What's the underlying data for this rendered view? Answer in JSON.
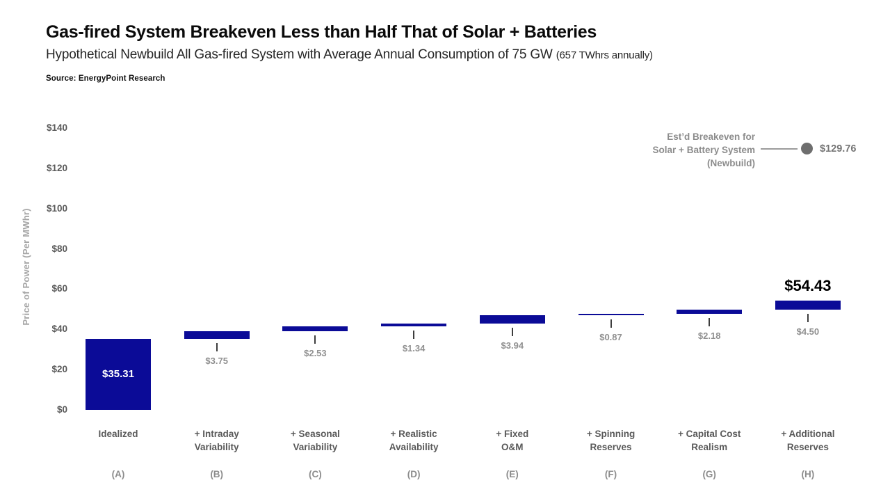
{
  "header": {
    "title": "Gas-fired System Breakeven Less than Half That of Solar + Batteries",
    "subtitle_main": "Hypothetical Newbuild All Gas-fired System with Average Annual Consumption of 75 GW ",
    "subtitle_note": "(657 TWhrs annually)",
    "source_label": "Source: ",
    "source_value": "EnergyPoint Research"
  },
  "chart_data": {
    "type": "bar",
    "subtype": "waterfall",
    "title": "Gas-fired System Breakeven Less than Half That of Solar + Batteries",
    "xlabel": "",
    "ylabel": "Price of Power (Per MWhr)",
    "ylim": [
      0,
      140
    ],
    "grid": false,
    "y_tick_values": [
      0,
      20,
      40,
      60,
      80,
      100,
      120,
      140
    ],
    "y_tick_labels": [
      "$0",
      "$20",
      "$40",
      "$60",
      "$80",
      "$100",
      "$120",
      "$140"
    ],
    "categories": [
      "Idealized",
      "+ Intraday\nVariability",
      "+ Seasonal\nVariability",
      "+ Realistic\nAvailability",
      "+ Fixed\nO&M",
      "+ Spinning\nReserves",
      "+ Capital Cost\nRealism",
      "+ Additional\nReserves"
    ],
    "category_ids": [
      "a",
      "b",
      "c",
      "d",
      "e",
      "f",
      "g",
      "h"
    ],
    "category_letters": [
      "(A)",
      "(B)",
      "(C)",
      "(D)",
      "(E)",
      "(F)",
      "(G)",
      "(H)"
    ],
    "values": [
      35.31,
      3.75,
      2.53,
      1.34,
      3.94,
      0.87,
      2.18,
      4.5
    ],
    "value_labels": [
      "$35.31",
      "$3.75",
      "$2.53",
      "$1.34",
      "$3.94",
      "$0.87",
      "$2.18",
      "$4.50"
    ],
    "inside_label_index": 0,
    "cumulative_total": 54.43,
    "total_label": "$54.43",
    "annotation": {
      "text_lines": [
        "Est’d Breakeven for",
        "Solar + Battery System",
        "(Newbuild)"
      ],
      "value": 129.76,
      "value_label": "$129.76"
    },
    "colors": {
      "bar": "#0b0b97",
      "inside_label": "#ffffff",
      "delta_label": "#909090",
      "total_label": "#000000",
      "annotation": "#8c8c8c",
      "dot": "#6e6e6e"
    }
  }
}
